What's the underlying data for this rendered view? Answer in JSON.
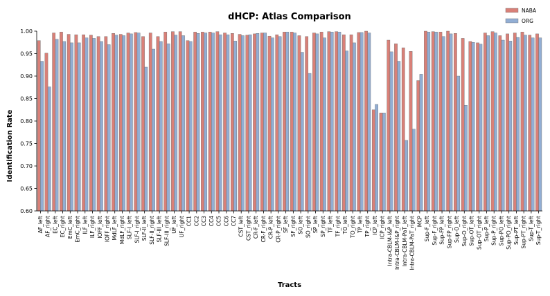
{
  "chart_data": {
    "type": "bar",
    "title": "dHCP: Atlas Comparison",
    "xlabel": "Tracts",
    "ylabel": "Identification Rate",
    "ylim": [
      0.6,
      1.0
    ],
    "yticks": [
      "0.60",
      "0.65",
      "0.70",
      "0.75",
      "0.80",
      "0.85",
      "0.90",
      "0.95",
      "1.00"
    ],
    "grid": false,
    "legend_position": "top-right",
    "colors": {
      "NABA": "#d98078",
      "ORG": "#92aed4"
    },
    "categories": [
      "AF_left",
      "AF_right",
      "EC_left",
      "EC_right",
      "EmC_left",
      "EmC_right",
      "ILF_left",
      "ILF_right",
      "IOFF_left",
      "IOFF_right",
      "MdLF_left",
      "MdLF_right",
      "SLF-I_left",
      "SLF-I_right",
      "SLF-II_left",
      "SLF-II_right",
      "SLF-III_left",
      "SLF-III_right",
      "UF_left",
      "UF_right",
      "CC1",
      "CC2",
      "CC3",
      "CC4",
      "CC5",
      "CC6",
      "CC7",
      "CST_left",
      "CST_right",
      "CR-F_left",
      "CR-F_right",
      "CR-P_left",
      "CR-P_right",
      "SF_left",
      "SF_right",
      "SO_left",
      "SO_right",
      "SP_left",
      "SP_right",
      "TF_left",
      "TF_right",
      "TO_left",
      "TO_right",
      "TP_left",
      "TP_right",
      "ICP_left",
      "ICP_right",
      "Intra-CBLM-I&P_left",
      "Intra-CBLM-I&P_right",
      "Intra-CBLM-PaT_left",
      "Intra-CBLM-PaT_right",
      "MCP",
      "Sup-F_left",
      "Sup-F_right",
      "Sup-FP_left",
      "Sup-FP_right",
      "Sup-O_left",
      "Sup-O_right",
      "Sup-OT_left",
      "Sup-OT_right",
      "Sup-P_left",
      "Sup-P_right",
      "Sup-PO_left",
      "Sup-PO_right",
      "Sup-PT_left",
      "Sup-PT_right",
      "Sup-T_left",
      "Sup-T_right"
    ],
    "series": [
      {
        "name": "NABA",
        "values": [
          0.979,
          0.951,
          0.996,
          0.998,
          0.993,
          0.992,
          0.992,
          0.991,
          0.988,
          0.988,
          0.995,
          0.993,
          0.996,
          0.997,
          0.988,
          0.996,
          0.988,
          0.998,
          0.999,
          0.999,
          0.979,
          0.998,
          0.998,
          0.998,
          0.999,
          0.996,
          0.995,
          0.993,
          0.991,
          0.994,
          0.996,
          0.989,
          0.992,
          0.998,
          0.998,
          0.99,
          0.988,
          0.996,
          0.998,
          0.999,
          0.999,
          0.992,
          0.992,
          0.997,
          1.0,
          0.825,
          0.818,
          0.98,
          0.972,
          0.963,
          0.955,
          0.89,
          1.0,
          0.999,
          0.998,
          1.0,
          0.995,
          0.984,
          0.977,
          0.974,
          0.996,
          0.999,
          0.99,
          0.994,
          0.996,
          0.998,
          0.991,
          0.994
        ]
      },
      {
        "name": "ORG",
        "values": [
          0.933,
          0.876,
          0.982,
          0.977,
          0.974,
          0.974,
          0.985,
          0.984,
          0.977,
          0.97,
          0.991,
          0.99,
          0.994,
          0.996,
          0.92,
          0.96,
          0.977,
          0.972,
          0.991,
          0.99,
          0.977,
          0.995,
          0.996,
          0.996,
          0.992,
          0.992,
          0.978,
          0.99,
          0.992,
          0.995,
          0.996,
          0.985,
          0.988,
          0.998,
          0.996,
          0.953,
          0.906,
          0.994,
          0.985,
          0.998,
          0.998,
          0.956,
          0.974,
          0.997,
          0.996,
          0.837,
          0.818,
          0.954,
          0.933,
          0.757,
          0.782,
          0.904,
          0.998,
          0.998,
          0.988,
          0.994,
          0.9,
          0.835,
          0.975,
          0.971,
          0.99,
          0.996,
          0.98,
          0.978,
          0.986,
          0.991,
          0.985,
          0.985
        ]
      }
    ]
  }
}
